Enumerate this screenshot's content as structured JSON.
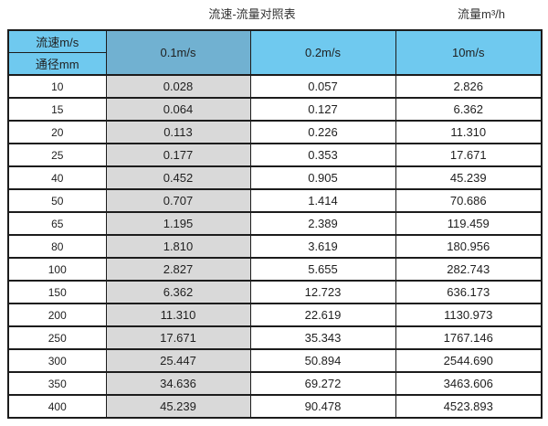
{
  "titles": {
    "main": "流速-流量对照表",
    "unit": "流量m³/h"
  },
  "colors": {
    "header_cyan": "#6FC9EF",
    "header_muted_blue": "#71B1D1",
    "gray_column": "#D9D9D9",
    "border": "#1C1C1C",
    "text": "#1F1F1F"
  },
  "table": {
    "corner_top": "流速m/s",
    "corner_bottom": "通径mm",
    "columns": [
      "0.1m/s",
      "0.2m/s",
      "10m/s"
    ],
    "rows": [
      {
        "dn": "10",
        "values": [
          "0.028",
          "0.057",
          "2.826"
        ]
      },
      {
        "dn": "15",
        "values": [
          "0.064",
          "0.127",
          "6.362"
        ]
      },
      {
        "dn": "20",
        "values": [
          "0.113",
          "0.226",
          "11.310"
        ]
      },
      {
        "dn": "25",
        "values": [
          "0.177",
          "0.353",
          "17.671"
        ]
      },
      {
        "dn": "40",
        "values": [
          "0.452",
          "0.905",
          "45.239"
        ]
      },
      {
        "dn": "50",
        "values": [
          "0.707",
          "1.414",
          "70.686"
        ]
      },
      {
        "dn": "65",
        "values": [
          "1.195",
          "2.389",
          "119.459"
        ]
      },
      {
        "dn": "80",
        "values": [
          "1.810",
          "3.619",
          "180.956"
        ]
      },
      {
        "dn": "100",
        "values": [
          "2.827",
          "5.655",
          "282.743"
        ]
      },
      {
        "dn": "150",
        "values": [
          "6.362",
          "12.723",
          "636.173"
        ]
      },
      {
        "dn": "200",
        "values": [
          "11.310",
          "22.619",
          "1130.973"
        ]
      },
      {
        "dn": "250",
        "values": [
          "17.671",
          "35.343",
          "1767.146"
        ]
      },
      {
        "dn": "300",
        "values": [
          "25.447",
          "50.894",
          "2544.690"
        ]
      },
      {
        "dn": "350",
        "values": [
          "34.636",
          "69.272",
          "3463.606"
        ]
      },
      {
        "dn": "400",
        "values": [
          "45.239",
          "90.478",
          "4523.893"
        ]
      }
    ]
  },
  "chart_data": {
    "type": "table",
    "title": "流速-流量对照表",
    "unit_label": "流量m³/h",
    "row_header": [
      "流速m/s",
      "通径mm"
    ],
    "columns": [
      "0.1m/s",
      "0.2m/s",
      "10m/s"
    ],
    "diameters_mm": [
      10,
      15,
      20,
      25,
      40,
      50,
      65,
      80,
      100,
      150,
      200,
      250,
      300,
      350,
      400
    ],
    "series": [
      {
        "name": "0.1m/s",
        "values": [
          0.028,
          0.064,
          0.113,
          0.177,
          0.452,
          0.707,
          1.195,
          1.81,
          2.827,
          6.362,
          11.31,
          17.671,
          25.447,
          34.636,
          45.239
        ]
      },
      {
        "name": "0.2m/s",
        "values": [
          0.057,
          0.127,
          0.226,
          0.353,
          0.905,
          1.414,
          2.389,
          3.619,
          5.655,
          12.723,
          22.619,
          35.343,
          50.894,
          69.272,
          90.478
        ]
      },
      {
        "name": "10m/s",
        "values": [
          2.826,
          6.362,
          11.31,
          17.671,
          45.239,
          70.686,
          119.459,
          180.956,
          282.743,
          636.173,
          1130.973,
          1767.146,
          2544.69,
          3463.606,
          4523.893
        ]
      }
    ]
  }
}
